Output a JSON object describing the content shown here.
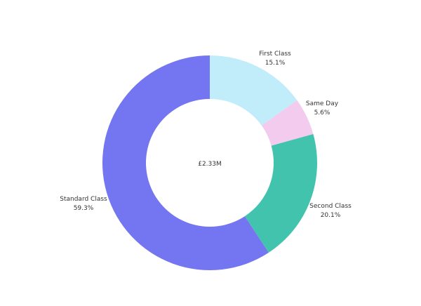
{
  "chart_data": {
    "type": "pie",
    "donut": true,
    "center_label": "£2.33M",
    "categories": [
      "First Class",
      "Same Day",
      "Second Class",
      "Standard Class"
    ],
    "values": [
      15.1,
      5.6,
      20.1,
      59.3
    ],
    "value_labels": [
      "15.1%",
      "5.6%",
      "20.1%",
      "59.3%"
    ],
    "colors": [
      "#c1ecfa",
      "#f2cbef",
      "#41c3ad",
      "#7375f1"
    ],
    "legend": "none"
  }
}
